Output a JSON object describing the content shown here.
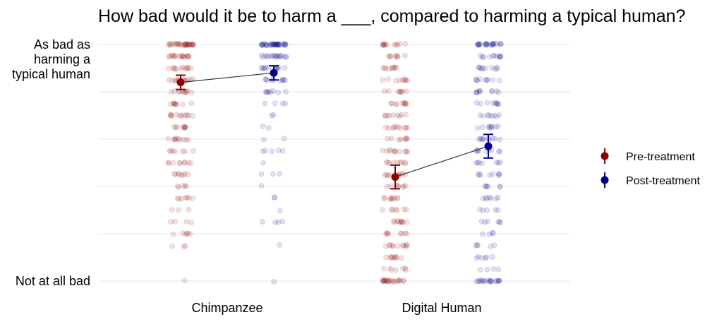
{
  "chart_data": {
    "type": "scatter",
    "title": "How bad would it be to harm a ___, compared to harming a typical human?",
    "xlabel": "",
    "ylabel": "",
    "categories": [
      "Chimpanzee",
      "Digital Human"
    ],
    "ylim": [
      0,
      5
    ],
    "yticks": [
      {
        "value": 5,
        "label": [
          "As bad as",
          "harming a",
          "typical human"
        ]
      },
      {
        "value": 0,
        "label": [
          "Not at all bad"
        ]
      }
    ],
    "grid": true,
    "legend_position": "right",
    "series": [
      {
        "name": "Pre-treatment",
        "color": "#8b0000",
        "means": [
          4.2,
          2.2
        ],
        "ci_low": [
          4.05,
          1.95
        ],
        "ci_high": [
          4.35,
          2.45
        ],
        "distribution": [
          {
            "category": "Chimpanzee",
            "counts": [
              1,
              0,
              0,
              3,
              6,
              4,
              3,
              7,
              5,
              8,
              9,
              7,
              10,
              9,
              12,
              9,
              11,
              13,
              12,
              17,
              30
            ]
          },
          {
            "category": "Digital Human",
            "counts": [
              22,
              7,
              9,
              11,
              8,
              10,
              7,
              9,
              8,
              10,
              9,
              11,
              8,
              10,
              9,
              10,
              8,
              9,
              9,
              8,
              12
            ]
          }
        ]
      },
      {
        "name": "Post-treatment",
        "color": "#00008b",
        "means": [
          4.4,
          2.85
        ],
        "ci_low": [
          4.25,
          2.6
        ],
        "ci_high": [
          4.55,
          3.1
        ],
        "distribution": [
          {
            "category": "Chimpanzee",
            "counts": [
              1,
              0,
              0,
              1,
              0,
              4,
              1,
              2,
              1,
              3,
              1,
              5,
              2,
              2,
              2,
              4,
              8,
              10,
              12,
              18,
              38
            ]
          },
          {
            "category": "Digital Human",
            "counts": [
              20,
              4,
              6,
              5,
              4,
              6,
              5,
              7,
              6,
              8,
              7,
              9,
              10,
              9,
              8,
              9,
              10,
              9,
              10,
              11,
              24
            ]
          }
        ]
      }
    ]
  }
}
